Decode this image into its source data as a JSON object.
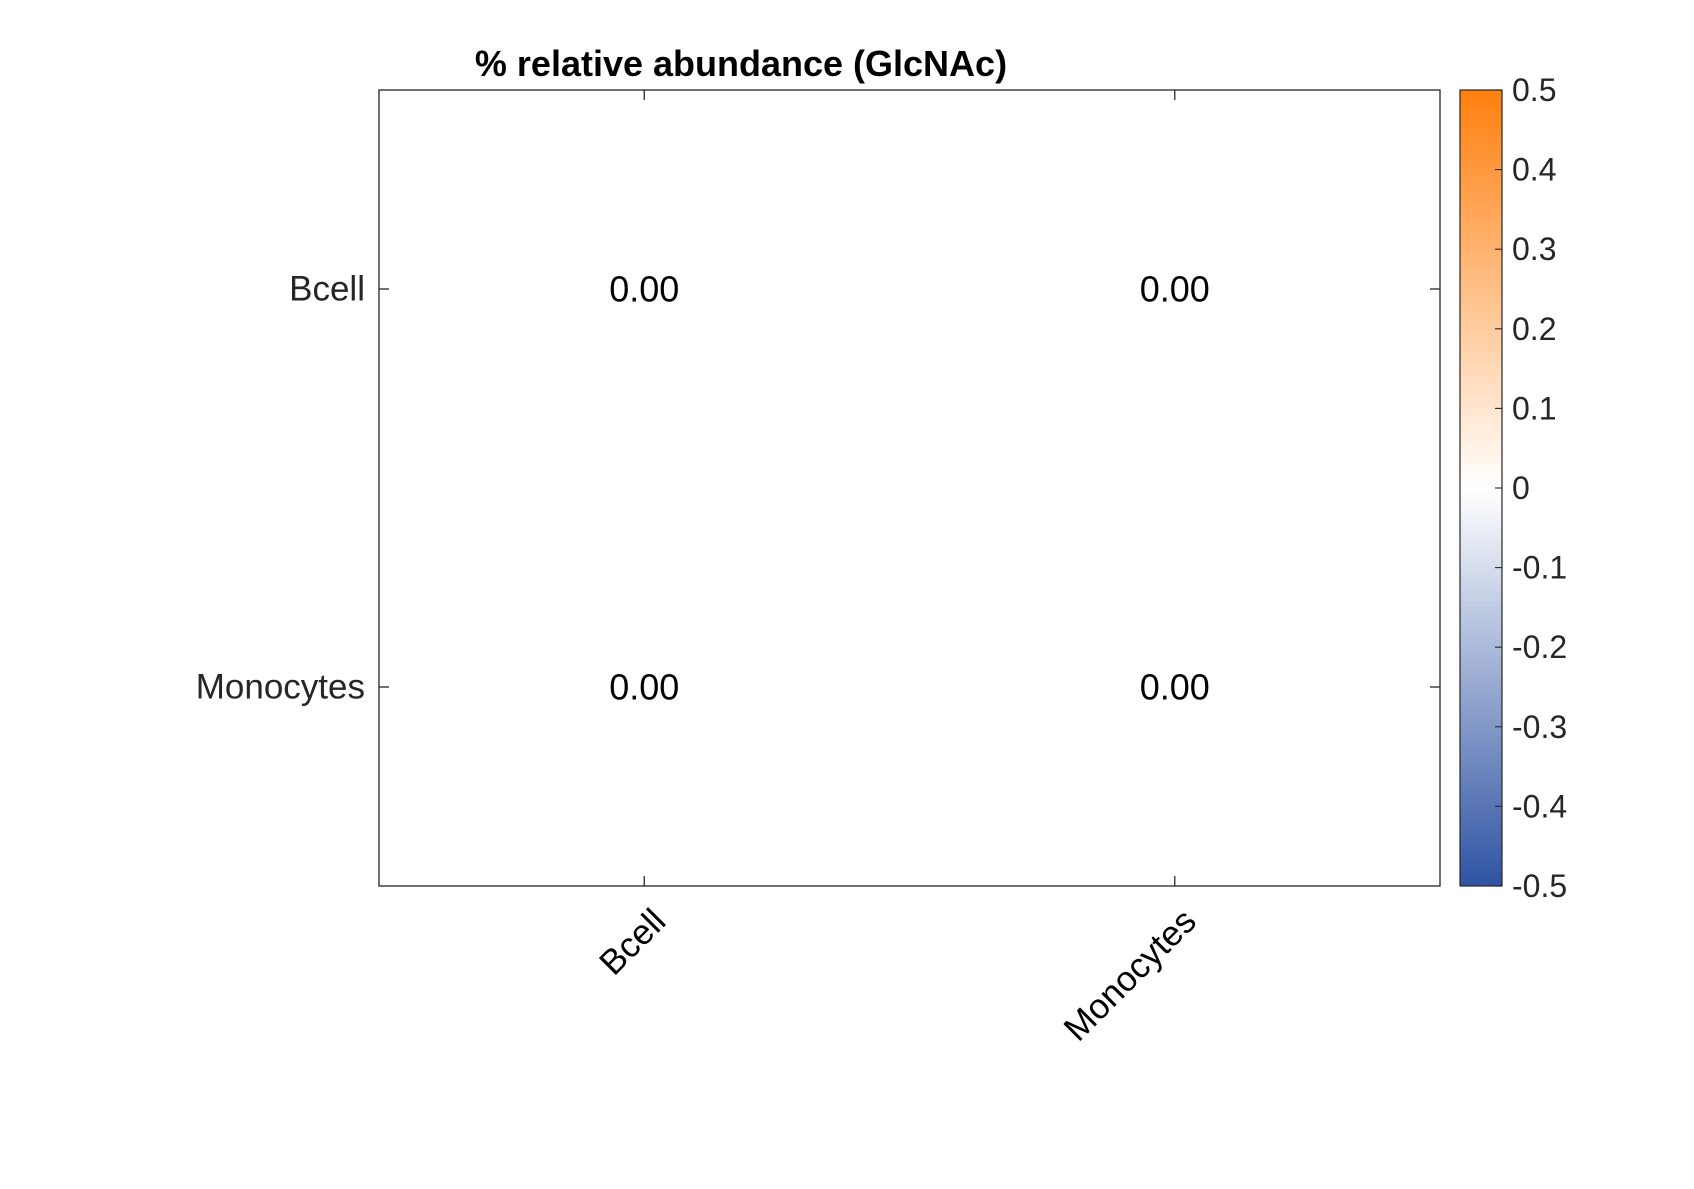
{
  "chart_data": {
    "type": "heatmap",
    "title": "% relative abundance (GlcNAc)",
    "x_categories": [
      "Bcell",
      "Monocytes"
    ],
    "y_categories": [
      "Bcell",
      "Monocytes"
    ],
    "values": [
      [
        0.0,
        0.0
      ],
      [
        0.0,
        0.0
      ]
    ],
    "cell_labels": [
      [
        "0.00",
        "0.00"
      ],
      [
        "0.00",
        "0.00"
      ]
    ],
    "colorbar": {
      "range": [
        -0.5,
        0.5
      ],
      "ticks": [
        0.5,
        0.4,
        0.3,
        0.2,
        0.1,
        0,
        -0.1,
        -0.2,
        -0.3,
        -0.4,
        -0.5
      ],
      "tick_labels": [
        "0.5",
        "0.4",
        "0.3",
        "0.2",
        "0.1",
        "0",
        "-0.1",
        "-0.2",
        "-0.3",
        "-0.4",
        "-0.5"
      ],
      "color_low": "#2f53a3",
      "color_mid": "#ffffff",
      "color_high": "#ff7f0e"
    },
    "grid": false
  }
}
